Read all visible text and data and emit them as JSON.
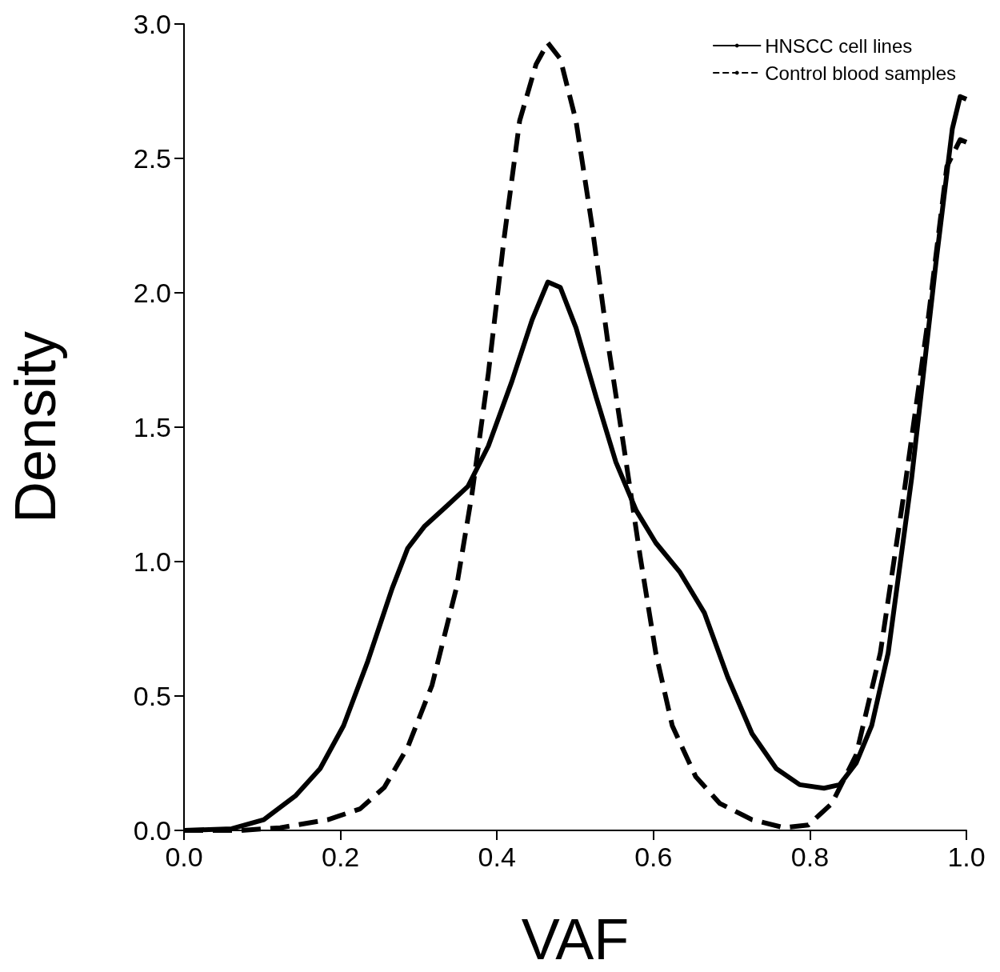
{
  "chart_data": {
    "type": "line",
    "xlabel": "VAF",
    "ylabel": "Density",
    "xlim": [
      0,
      1
    ],
    "xticks": [
      {
        "value": 0,
        "label": "0.0"
      },
      0.2,
      0.4,
      0.6,
      0.8,
      {
        "value": 1,
        "label": "1.0"
      }
    ],
    "ylim": [
      0,
      3
    ],
    "yticks": [
      {
        "value": 0,
        "label": "0.0"
      },
      0.5,
      {
        "value": 1,
        "label": "1.0"
      },
      1.5,
      {
        "value": 2,
        "label": "2.0"
      },
      2.5,
      {
        "value": 3,
        "label": "3.0"
      }
    ],
    "grid": false,
    "legend": "top right",
    "marker": "none",
    "series": [
      {
        "name": "HNSCC cell lines",
        "color": "#000000",
        "line_style": "solid",
        "x": [
          0,
          0.061,
          0.102,
          0.143,
          0.174,
          0.204,
          0.235,
          0.266,
          0.286,
          0.307,
          0.337,
          0.363,
          0.389,
          0.419,
          0.445,
          0.465,
          0.481,
          0.501,
          0.527,
          0.552,
          0.578,
          0.603,
          0.634,
          0.665,
          0.695,
          0.726,
          0.757,
          0.787,
          0.818,
          0.838,
          0.859,
          0.879,
          0.9,
          0.93,
          0.961,
          0.982,
          0.992,
          1.0
        ],
        "values": [
          0,
          0.006,
          0.04,
          0.13,
          0.23,
          0.39,
          0.63,
          0.9,
          1.05,
          1.13,
          1.21,
          1.28,
          1.43,
          1.67,
          1.9,
          2.04,
          2.02,
          1.87,
          1.61,
          1.37,
          1.19,
          1.07,
          0.96,
          0.81,
          0.57,
          0.36,
          0.23,
          0.17,
          0.157,
          0.17,
          0.25,
          0.39,
          0.66,
          1.31,
          2.11,
          2.61,
          2.73,
          2.72
        ]
      },
      {
        "name": "Control blood samples",
        "color": "#000000",
        "line_style": "dashed",
        "x": [
          0,
          0.072,
          0.123,
          0.184,
          0.225,
          0.256,
          0.286,
          0.317,
          0.348,
          0.368,
          0.389,
          0.409,
          0.429,
          0.45,
          0.465,
          0.481,
          0.501,
          0.521,
          0.542,
          0.562,
          0.583,
          0.603,
          0.624,
          0.654,
          0.685,
          0.726,
          0.767,
          0.798,
          0.828,
          0.859,
          0.89,
          0.92,
          0.951,
          0.975,
          0.992,
          1.0
        ],
        "values": [
          0,
          0,
          0.01,
          0.04,
          0.08,
          0.16,
          0.31,
          0.54,
          0.9,
          1.25,
          1.7,
          2.2,
          2.64,
          2.85,
          2.93,
          2.87,
          2.64,
          2.26,
          1.81,
          1.43,
          1.02,
          0.66,
          0.39,
          0.2,
          0.1,
          0.04,
          0.01,
          0.02,
          0.1,
          0.28,
          0.66,
          1.25,
          1.9,
          2.47,
          2.57,
          2.56
        ]
      }
    ]
  }
}
